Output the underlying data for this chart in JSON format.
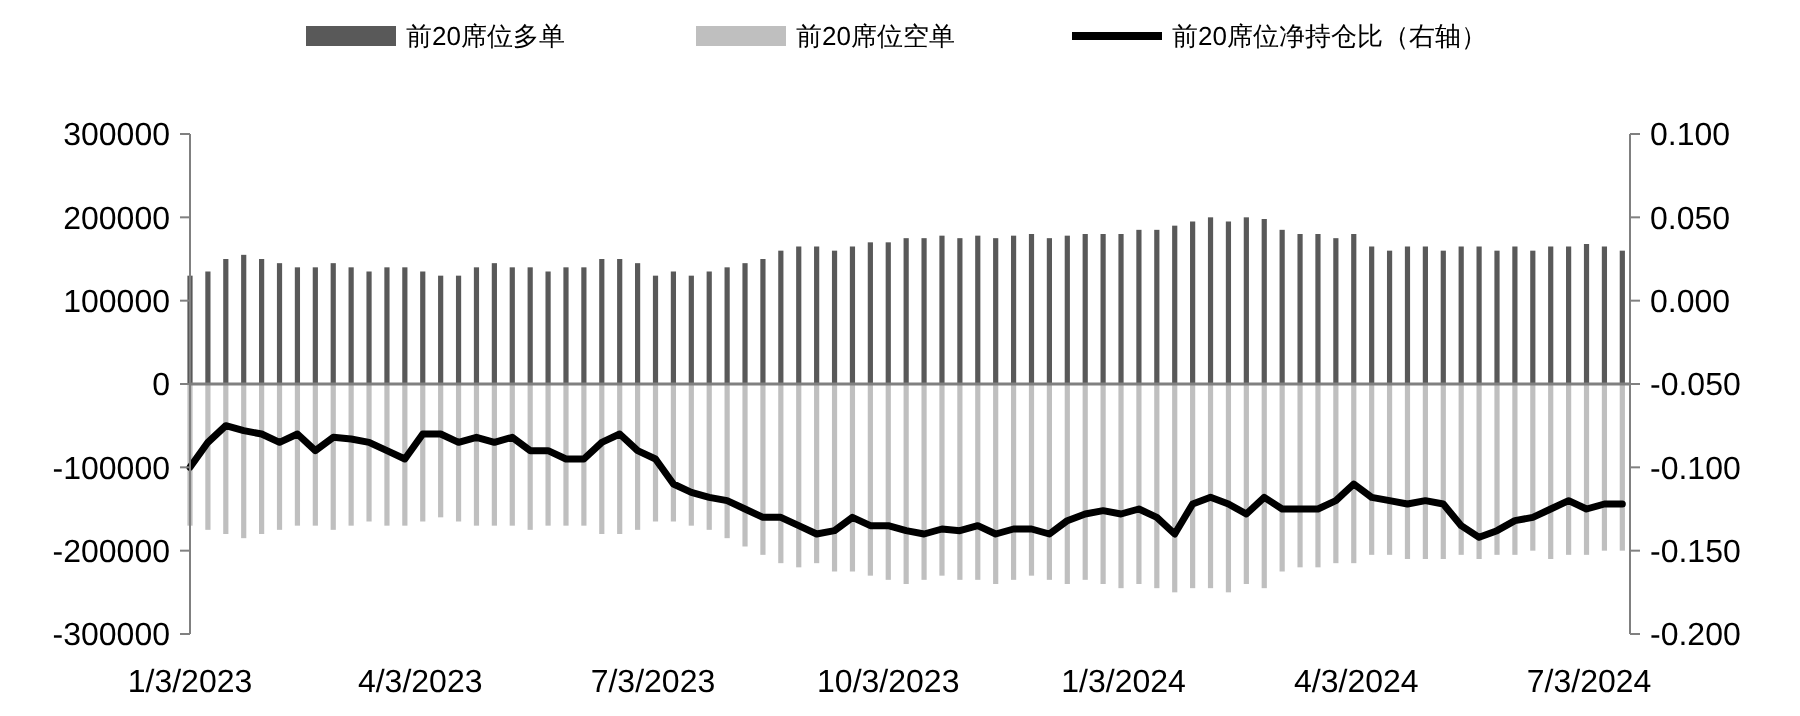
{
  "chart_data": {
    "type": "bar",
    "legend": "top",
    "stacked": true,
    "x": [
      "2023-01-03",
      "2023-01-10",
      "2023-01-17",
      "2023-01-24",
      "2023-01-31",
      "2023-02-07",
      "2023-02-14",
      "2023-02-21",
      "2023-02-28",
      "2023-03-07",
      "2023-03-14",
      "2023-03-21",
      "2023-03-28",
      "2023-04-04",
      "2023-04-11",
      "2023-04-18",
      "2023-04-25",
      "2023-05-02",
      "2023-05-09",
      "2023-05-16",
      "2023-05-23",
      "2023-05-30",
      "2023-06-06",
      "2023-06-13",
      "2023-06-20",
      "2023-06-27",
      "2023-07-04",
      "2023-07-11",
      "2023-07-18",
      "2023-07-25",
      "2023-08-01",
      "2023-08-08",
      "2023-08-15",
      "2023-08-22",
      "2023-08-29",
      "2023-09-05",
      "2023-09-12",
      "2023-09-19",
      "2023-09-26",
      "2023-10-03",
      "2023-10-10",
      "2023-10-17",
      "2023-10-24",
      "2023-10-31",
      "2023-11-07",
      "2023-11-14",
      "2023-11-21",
      "2023-11-28",
      "2023-12-05",
      "2023-12-12",
      "2023-12-19",
      "2023-12-26",
      "2024-01-02",
      "2024-01-09",
      "2024-01-16",
      "2024-01-23",
      "2024-01-30",
      "2024-02-06",
      "2024-02-13",
      "2024-02-20",
      "2024-02-27",
      "2024-03-05",
      "2024-03-12",
      "2024-03-19",
      "2024-03-26",
      "2024-04-02",
      "2024-04-09",
      "2024-04-16",
      "2024-04-23",
      "2024-04-30",
      "2024-05-07",
      "2024-05-14",
      "2024-05-21",
      "2024-05-28",
      "2024-06-04",
      "2024-06-11",
      "2024-06-18",
      "2024-06-25",
      "2024-07-02",
      "2024-07-09",
      "2024-07-16"
    ],
    "xlim": [
      "2023-01-03",
      "2024-07-19"
    ],
    "xticks": [
      {
        "value": "2023-01-03",
        "label": "1/3/2023"
      },
      {
        "value": "2023-04-03",
        "label": "4/3/2023"
      },
      {
        "value": "2023-07-03",
        "label": "7/3/2023"
      },
      {
        "value": "2023-10-03",
        "label": "10/3/2023"
      },
      {
        "value": "2024-01-03",
        "label": "1/3/2024"
      },
      {
        "value": "2024-04-03",
        "label": "4/3/2024"
      },
      {
        "value": "2024-07-03",
        "label": "7/3/2024"
      }
    ],
    "ylim": [
      -300000,
      300000
    ],
    "yticks": [
      -300000,
      -200000,
      -100000,
      0,
      100000,
      200000,
      300000
    ],
    "y2lim": [
      -0.2,
      0.1
    ],
    "y2ticks": [
      {
        "value": -0.2,
        "label": "-0.200"
      },
      {
        "value": -0.15,
        "label": "-0.150"
      },
      {
        "value": -0.1,
        "label": "-0.100"
      },
      {
        "value": -0.05,
        "label": "-0.050"
      },
      {
        "value": 0,
        "label": "0.000"
      },
      {
        "value": 0.05,
        "label": "0.050"
      },
      {
        "value": 0.1,
        "label": "0.100"
      }
    ],
    "series": [
      {
        "name": "前20席位多单",
        "color": "#595959",
        "values": [
          130000,
          135000,
          150000,
          155000,
          150000,
          145000,
          140000,
          140000,
          145000,
          140000,
          135000,
          140000,
          140000,
          135000,
          130000,
          130000,
          140000,
          145000,
          140000,
          140000,
          135000,
          140000,
          140000,
          150000,
          150000,
          145000,
          130000,
          135000,
          130000,
          135000,
          140000,
          145000,
          150000,
          160000,
          165000,
          165000,
          160000,
          165000,
          170000,
          170000,
          175000,
          175000,
          178000,
          175000,
          178000,
          175000,
          178000,
          180000,
          175000,
          178000,
          180000,
          180000,
          180000,
          185000,
          185000,
          190000,
          195000,
          200000,
          195000,
          200000,
          198000,
          185000,
          180000,
          180000,
          175000,
          180000,
          165000,
          160000,
          165000,
          165000,
          160000,
          165000,
          165000,
          160000,
          165000,
          160000,
          165000,
          165000,
          168000,
          165000,
          160000
        ]
      },
      {
        "name": "前20席位空单",
        "color": "#bfbfbf",
        "values": [
          -170000,
          -175000,
          -180000,
          -185000,
          -180000,
          -175000,
          -170000,
          -170000,
          -175000,
          -170000,
          -165000,
          -170000,
          -170000,
          -165000,
          -160000,
          -165000,
          -170000,
          -170000,
          -170000,
          -175000,
          -170000,
          -170000,
          -170000,
          -180000,
          -180000,
          -175000,
          -165000,
          -165000,
          -170000,
          -175000,
          -185000,
          -195000,
          -205000,
          -215000,
          -220000,
          -215000,
          -225000,
          -225000,
          -230000,
          -235000,
          -240000,
          -235000,
          -230000,
          -235000,
          -235000,
          -240000,
          -235000,
          -230000,
          -235000,
          -240000,
          -235000,
          -240000,
          -245000,
          -240000,
          -245000,
          -250000,
          -245000,
          -245000,
          -250000,
          -240000,
          -245000,
          -225000,
          -220000,
          -220000,
          -215000,
          -215000,
          -205000,
          -205000,
          -210000,
          -210000,
          -210000,
          -205000,
          -210000,
          -205000,
          -205000,
          -200000,
          -210000,
          -205000,
          -205000,
          -200000,
          -200000
        ]
      },
      {
        "name": "前20席位净持仓比（右轴）",
        "type": "line",
        "axis": "y2",
        "color": "#000000",
        "line_style": "solid",
        "values": [
          -0.1,
          -0.085,
          -0.075,
          -0.078,
          -0.08,
          -0.085,
          -0.08,
          -0.09,
          -0.082,
          -0.083,
          -0.085,
          -0.09,
          -0.095,
          -0.08,
          -0.08,
          -0.085,
          -0.082,
          -0.085,
          -0.082,
          -0.09,
          -0.09,
          -0.095,
          -0.095,
          -0.085,
          -0.08,
          -0.09,
          -0.095,
          -0.11,
          -0.115,
          -0.118,
          -0.12,
          -0.125,
          -0.13,
          -0.13,
          -0.135,
          -0.14,
          -0.138,
          -0.13,
          -0.135,
          -0.135,
          -0.138,
          -0.14,
          -0.137,
          -0.138,
          -0.135,
          -0.14,
          -0.137,
          -0.137,
          -0.14,
          -0.132,
          -0.128,
          -0.126,
          -0.128,
          -0.125,
          -0.13,
          -0.14,
          -0.122,
          -0.118,
          -0.122,
          -0.128,
          -0.118,
          -0.125,
          -0.125,
          -0.125,
          -0.12,
          -0.11,
          -0.118,
          -0.12,
          -0.122,
          -0.12,
          -0.122,
          -0.135,
          -0.142,
          -0.138,
          -0.132,
          -0.13,
          -0.125,
          -0.12,
          -0.125,
          -0.122,
          -0.122
        ]
      }
    ]
  }
}
